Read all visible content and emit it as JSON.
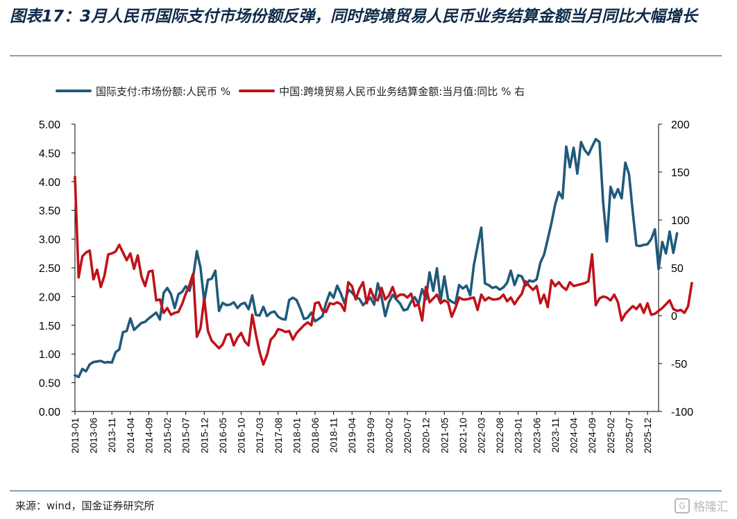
{
  "header": {
    "title": "图表17：3月人民币国际支付市场份额反弹，同时跨境贸易人民币业务结算金额当月同比大幅增长"
  },
  "footer": {
    "source": "来源：wind，国金证券研究所",
    "watermark": "格隆汇"
  },
  "colors": {
    "series_left": "#1f5a7a",
    "series_right": "#c0121a",
    "axis": "#000000"
  },
  "chart_data": {
    "type": "line",
    "title": "",
    "xlabel": "",
    "ylabel_left": "",
    "ylabel_right": "",
    "ylim_left": [
      0,
      5
    ],
    "ylim_right": [
      -100,
      200
    ],
    "yticks_left": [
      "0.00",
      "0.50",
      "1.00",
      "1.50",
      "2.00",
      "2.50",
      "3.00",
      "3.50",
      "4.00",
      "4.50",
      "5.00"
    ],
    "yticks_right": [
      "-100",
      "-50",
      "0",
      "50",
      "100",
      "150",
      "200"
    ],
    "x_tick_labels": [
      "2013-01",
      "2013-06",
      "2013-11",
      "2014-04",
      "2014-09",
      "2015-02",
      "2015-07",
      "2015-12",
      "2016-05",
      "2016-10",
      "2017-03",
      "2017-08",
      "2018-01",
      "2018-06",
      "2018-11",
      "2019-04",
      "2019-09",
      "2020-02",
      "2020-07",
      "2020-12",
      "2021-05",
      "2021-10",
      "2022-03",
      "2022-08",
      "2023-01",
      "2023-06",
      "2023-11",
      "2024-04",
      "2024-09",
      "2025-02",
      "2025-07",
      "2025-12"
    ],
    "x_start": "2013-01",
    "x_end": "2026-03",
    "legend_position": "top",
    "grid": false,
    "series": [
      {
        "name": "国际支付:市场份额:人民币 %",
        "axis": "left",
        "values": [
          0.63,
          0.6,
          0.74,
          0.7,
          0.82,
          0.86,
          0.87,
          0.88,
          0.85,
          0.86,
          0.85,
          1.03,
          1.08,
          1.38,
          1.4,
          1.62,
          1.42,
          1.48,
          1.54,
          1.56,
          1.62,
          1.67,
          1.72,
          1.6,
          2.06,
          2.15,
          2.04,
          1.8,
          2.04,
          2.08,
          2.18,
          2.1,
          2.34,
          2.79,
          2.5,
          1.91,
          2.29,
          2.31,
          2.45,
          1.75,
          1.89,
          1.85,
          1.86,
          1.9,
          1.8,
          1.87,
          1.89,
          1.78,
          2.02,
          1.68,
          1.67,
          1.82,
          1.66,
          1.72,
          1.74,
          1.65,
          1.61,
          1.6,
          1.94,
          1.98,
          1.94,
          1.79,
          1.61,
          1.63,
          1.72,
          1.57,
          1.61,
          1.66,
          1.89,
          2.07,
          1.98,
          2.19,
          2.05,
          1.88,
          2.12,
          2.07,
          1.99,
          1.96,
          1.85,
          1.92,
          1.98,
          1.86,
          2.23,
          1.99,
          1.66,
          1.9,
          2.03,
          1.95,
          1.88,
          1.76,
          1.78,
          1.91,
          1.99,
          1.87,
          2.13,
          1.95,
          2.42,
          2.1,
          2.49,
          1.93,
          2.35,
          1.96,
          1.91,
          1.88,
          2.2,
          2.14,
          2.19,
          2.02,
          2.55,
          2.88,
          3.2,
          2.23,
          2.2,
          2.15,
          2.17,
          2.12,
          2.16,
          2.24,
          2.45,
          2.2,
          2.37,
          2.35,
          2.19,
          2.28,
          2.26,
          2.3,
          2.59,
          2.73,
          3.0,
          3.28,
          3.6,
          3.82,
          3.71,
          4.61,
          4.25,
          4.59,
          4.14,
          4.69,
          4.55,
          4.47,
          4.61,
          4.74,
          4.69,
          3.63,
          2.96,
          3.91,
          3.72,
          3.87,
          3.71,
          4.33,
          4.13,
          3.48,
          2.89,
          2.88,
          2.9,
          2.91,
          3.0,
          3.17,
          2.48,
          2.95,
          2.75,
          3.13,
          2.76,
          3.1
        ]
      },
      {
        "name": "中国:跨境贸易人民币业务结算金额:当月值:同比 % 右",
        "axis": "right",
        "values": [
          145,
          40,
          62,
          66,
          68,
          38,
          48,
          30,
          42,
          64,
          65,
          67,
          74,
          66,
          58,
          65,
          49,
          63,
          41,
          31,
          46,
          47,
          16,
          17,
          3,
          8,
          1,
          3,
          4,
          12,
          23,
          32,
          44,
          -22,
          -13,
          18,
          -16,
          -26,
          -30,
          -34,
          -30,
          -20,
          -19,
          -31,
          -23,
          -18,
          -27,
          -31,
          1,
          -20,
          -38,
          -51,
          -41,
          -25,
          -21,
          -14,
          -15,
          -17,
          -16,
          -25,
          -18,
          -14,
          -10,
          -7,
          -10,
          13,
          14,
          5,
          4,
          13,
          12,
          14,
          12,
          5,
          35,
          31,
          17,
          28,
          35,
          13,
          28,
          18,
          16,
          29,
          17,
          21,
          30,
          19,
          22,
          22,
          19,
          23,
          10,
          12,
          -5,
          30,
          14,
          18,
          22,
          13,
          16,
          14,
          -1,
          8,
          19,
          17,
          17,
          18,
          19,
          6,
          22,
          16,
          19,
          17,
          17,
          18,
          22,
          15,
          19,
          12,
          18,
          23,
          36,
          31,
          27,
          31,
          13,
          22,
          9,
          37,
          31,
          35,
          30,
          27,
          35,
          31,
          32,
          33,
          34,
          36,
          64,
          11,
          18,
          20,
          19,
          16,
          22,
          14,
          -5,
          2,
          6,
          10,
          7,
          12,
          3,
          13,
          1,
          2,
          5,
          8,
          12,
          16,
          7,
          5,
          6,
          3,
          10,
          34
        ]
      }
    ]
  }
}
